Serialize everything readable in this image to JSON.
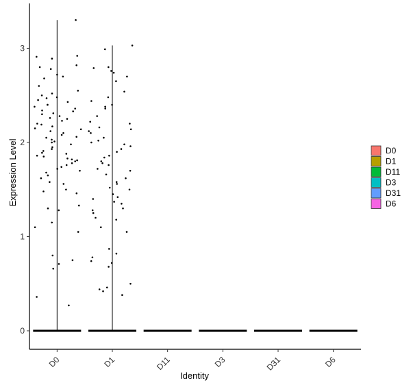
{
  "chart_data": {
    "type": "violin",
    "xlabel": "Identity",
    "ylabel": "Expression Level",
    "categories": [
      "D0",
      "D1",
      "D11",
      "D3",
      "D31",
      "D6"
    ],
    "y_ticks": [
      0,
      1,
      2,
      3
    ],
    "ylim": [
      -0.18,
      3.45
    ],
    "legend": {
      "position": "right",
      "entries": [
        {
          "label": "D0",
          "color": "#F8766D"
        },
        {
          "label": "D1",
          "color": "#B79F00"
        },
        {
          "label": "D11",
          "color": "#00BA38"
        },
        {
          "label": "D3",
          "color": "#00BFC4"
        },
        {
          "label": "D31",
          "color": "#619CFF"
        },
        {
          "label": "D6",
          "color": "#F564E3"
        }
      ]
    },
    "violin_max": [
      3.3,
      3.03,
      0,
      0,
      0,
      0
    ],
    "points": [
      [
        3.3,
        2.92,
        2.91,
        2.89,
        2.82,
        2.8,
        2.78,
        2.72,
        2.7,
        2.68,
        2.6,
        2.55,
        2.52,
        2.5,
        2.48,
        2.47,
        2.45,
        2.43,
        2.4,
        2.4,
        2.38,
        2.36,
        2.34,
        2.33,
        2.31,
        2.3,
        2.28,
        2.26,
        2.25,
        2.23,
        2.2,
        2.19,
        2.17,
        2.15,
        2.14,
        2.12,
        2.1,
        2.08,
        2.06,
        2.05,
        2.03,
        2.01,
        2.0,
        1.98,
        1.95,
        1.93,
        1.91,
        1.89,
        1.88,
        1.86,
        1.85,
        1.83,
        1.82,
        1.81,
        1.8,
        1.78,
        1.76,
        1.74,
        1.72,
        1.7,
        1.68,
        1.65,
        1.62,
        1.58,
        1.56,
        1.5,
        1.48,
        1.46,
        1.33,
        1.3,
        1.28,
        1.15,
        1.1,
        1.05,
        0.8,
        0.75,
        0.71,
        0.66,
        0.36,
        0.27
      ],
      [
        3.03,
        2.99,
        2.8,
        2.79,
        2.76,
        2.74,
        2.7,
        2.65,
        2.54,
        2.48,
        2.44,
        2.4,
        2.38,
        2.36,
        2.28,
        2.22,
        2.2,
        2.16,
        2.14,
        2.12,
        2.1,
        2.05,
        2.02,
        2.0,
        1.98,
        1.96,
        1.93,
        1.9,
        1.86,
        1.84,
        1.8,
        1.78,
        1.76,
        1.72,
        1.7,
        1.66,
        1.62,
        1.58,
        1.56,
        1.52,
        1.5,
        1.45,
        1.42,
        1.4,
        1.37,
        1.35,
        1.3,
        1.28,
        1.25,
        1.2,
        1.18,
        1.1,
        1.05,
        0.87,
        0.82,
        0.78,
        0.74,
        0.72,
        0.68,
        0.5,
        0.46,
        0.44,
        0.42,
        0.38
      ]
    ]
  }
}
